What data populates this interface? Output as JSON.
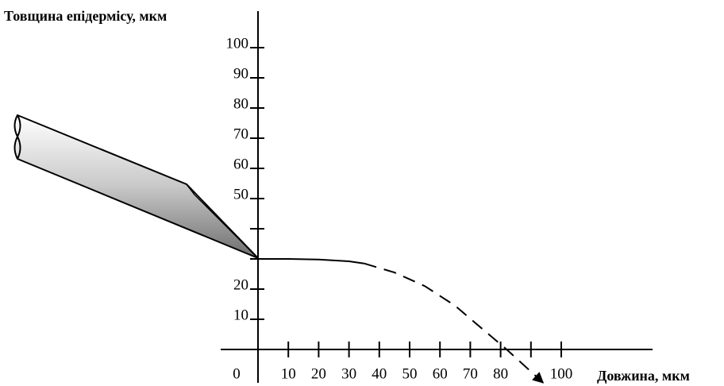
{
  "chart_data": {
    "type": "line",
    "ylabel": "Товщина епідермісу, мкм",
    "xlabel": "Довжина, мкм",
    "xlim": [
      0,
      100
    ],
    "ylim": [
      0,
      100
    ],
    "xticks": [
      0,
      10,
      20,
      30,
      40,
      50,
      60,
      70,
      80,
      {
        "value": 90,
        "label": null
      },
      100
    ],
    "yticks": [
      10,
      20,
      {
        "value": 30,
        "label": null
      },
      {
        "value": 40,
        "label": null
      },
      50,
      60,
      70,
      80,
      90,
      100
    ],
    "color": "#000000",
    "series": [
      {
        "style": "solid",
        "x": [
          0,
          10,
          20,
          30,
          35
        ],
        "values": [
          30,
          30,
          29.8,
          29.2,
          28.5
        ]
      },
      {
        "style": "dashed",
        "x": [
          35,
          45,
          55,
          65,
          72,
          82,
          94
        ],
        "values": [
          28.5,
          25.5,
          21,
          14.5,
          8.5,
          0,
          -11
        ]
      }
    ]
  }
}
